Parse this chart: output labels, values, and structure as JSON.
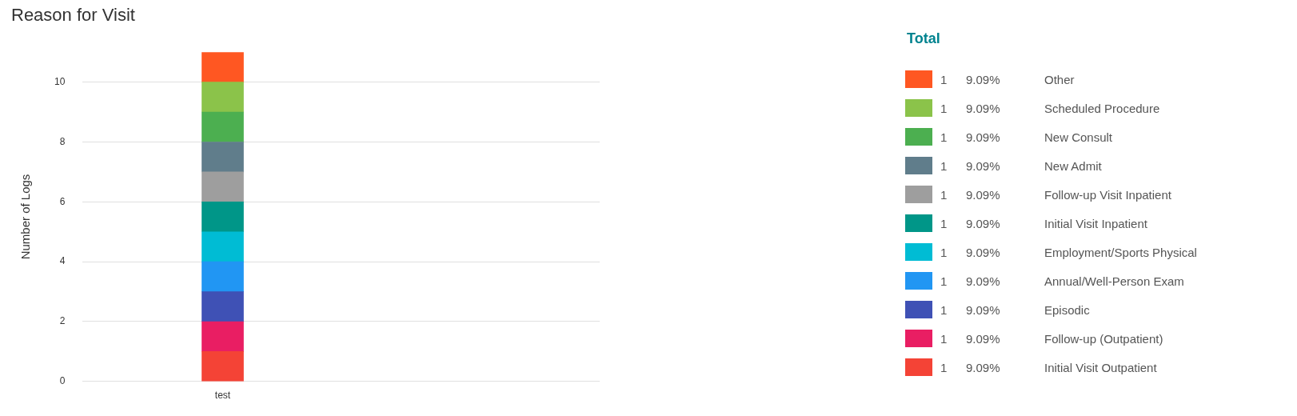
{
  "chart_data": {
    "type": "bar",
    "title": "Reason for Visit",
    "ylabel": "Number of Logs",
    "legend_title": "Total",
    "legend": "right",
    "stacked": true,
    "grid": "y",
    "categories": [
      "test"
    ],
    "ylim": [
      0,
      11
    ],
    "yticks": [
      0,
      2,
      4,
      6,
      8,
      10
    ],
    "annotations": [
      "1",
      "9.09%",
      "1",
      "9.09%",
      "1",
      "9.09%",
      "1",
      "9.09%",
      "1",
      "9.09%",
      "1",
      "9.09%",
      "1",
      "9.09%",
      "1",
      "9.09%",
      "1",
      "9.09%",
      "1",
      "9.09%",
      "1",
      "9.09%"
    ],
    "series": [
      {
        "name": "Initial Visit Outpatient",
        "color": "#f44336",
        "values": [
          1
        ]
      },
      {
        "name": "Follow-up (Outpatient)",
        "color": "#e91e63",
        "values": [
          1
        ]
      },
      {
        "name": "Episodic",
        "color": "#3f51b5",
        "values": [
          1
        ]
      },
      {
        "name": "Annual/Well-Person Exam",
        "color": "#2196f3",
        "values": [
          1
        ]
      },
      {
        "name": "Employment/Sports Physical",
        "color": "#00bcd4",
        "values": [
          1
        ]
      },
      {
        "name": "Initial Visit Inpatient",
        "color": "#009688",
        "values": [
          1
        ]
      },
      {
        "name": "Follow-up Visit Inpatient",
        "color": "#9e9e9e",
        "values": [
          1
        ]
      },
      {
        "name": "New Admit",
        "color": "#607d8b",
        "values": [
          1
        ]
      },
      {
        "name": "New Consult",
        "color": "#4caf50",
        "values": [
          1
        ]
      },
      {
        "name": "Scheduled Procedure",
        "color": "#8bc34a",
        "values": [
          1
        ]
      },
      {
        "name": "Other",
        "color": "#ff5722",
        "values": [
          1
        ]
      }
    ]
  }
}
